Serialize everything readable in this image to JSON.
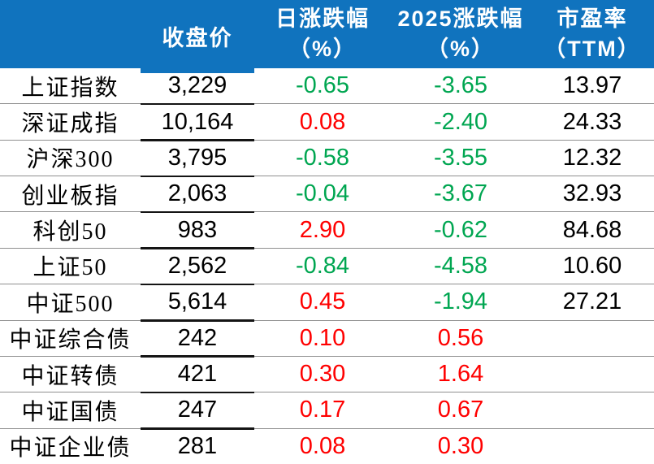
{
  "chart_data": {
    "type": "table",
    "title": "",
    "columns": [
      "",
      "收盘价",
      "日涨跌幅（%）",
      "2025涨跌幅（%）",
      "市盈率（TTM）"
    ],
    "rows": [
      {
        "name": "上证指数",
        "close": "3,229",
        "day_pct": "-0.65",
        "ytd_pct": "-3.65",
        "pe_ttm": "13.97"
      },
      {
        "name": "深证成指",
        "close": "10,164",
        "day_pct": "0.08",
        "ytd_pct": "-2.40",
        "pe_ttm": "24.33"
      },
      {
        "name": "沪深300",
        "close": "3,795",
        "day_pct": "-0.58",
        "ytd_pct": "-3.55",
        "pe_ttm": "12.32"
      },
      {
        "name": "创业板指",
        "close": "2,063",
        "day_pct": "-0.04",
        "ytd_pct": "-3.67",
        "pe_ttm": "32.93"
      },
      {
        "name": "科创50",
        "close": "983",
        "day_pct": "2.90",
        "ytd_pct": "-0.62",
        "pe_ttm": "84.68"
      },
      {
        "name": "上证50",
        "close": "2,562",
        "day_pct": "-0.84",
        "ytd_pct": "-4.58",
        "pe_ttm": "10.60"
      },
      {
        "name": "中证500",
        "close": "5,614",
        "day_pct": "0.45",
        "ytd_pct": "-1.94",
        "pe_ttm": "27.21"
      },
      {
        "name": "中证综合债",
        "close": "242",
        "day_pct": "0.10",
        "ytd_pct": "0.56",
        "pe_ttm": ""
      },
      {
        "name": "中证转债",
        "close": "421",
        "day_pct": "0.30",
        "ytd_pct": "1.64",
        "pe_ttm": ""
      },
      {
        "name": "中证国债",
        "close": "247",
        "day_pct": "0.17",
        "ytd_pct": "0.67",
        "pe_ttm": ""
      },
      {
        "name": "中证企业债",
        "close": "281",
        "day_pct": "0.08",
        "ytd_pct": "0.30",
        "pe_ttm": ""
      }
    ],
    "legend": "none",
    "grid": "horizontal row separators only"
  },
  "header": {
    "close": "收盘价",
    "day_line1": "日涨跌幅",
    "day_line2": "（%）",
    "ytd_line1": "2025涨跌幅",
    "ytd_line2": "（%）",
    "pe_line1": "市盈率",
    "pe_line2": "（TTM）"
  },
  "colors": {
    "header_bg": "#1073BE",
    "header_text": "#FFFFFF",
    "positive": "#FF0000",
    "negative": "#00A651",
    "text": "#000000",
    "row_line": "#8F8F8F",
    "close_line": "#141414"
  }
}
